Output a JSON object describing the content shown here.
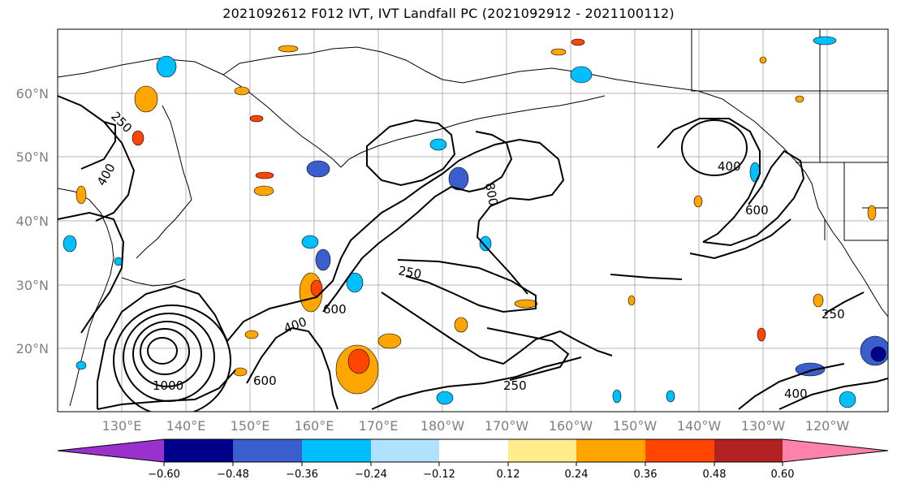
{
  "title": "2021092612 F012 IVT, IVT Landfall PC (2021092912 - 2021100112)",
  "lat_labels": [
    "60°N",
    "50°N",
    "40°N",
    "30°N",
    "20°N"
  ],
  "lon_labels": [
    "130°E",
    "140°E",
    "150°E",
    "160°E",
    "170°E",
    "180°W",
    "170°W",
    "160°W",
    "150°W",
    "140°W",
    "130°W",
    "120°W"
  ],
  "contour_labels": [
    "250",
    "400",
    "600",
    "800",
    "1000",
    "250",
    "400",
    "600",
    "250",
    "400",
    "600",
    "250",
    "400"
  ],
  "colorbar": {
    "tick_labels": [
      "−0.60",
      "−0.48",
      "−0.36",
      "−0.24",
      "−0.12",
      "0.12",
      "0.24",
      "0.36",
      "0.48",
      "0.60"
    ],
    "colors": [
      "#9932cc",
      "#00008b",
      "#3a5fcd",
      "#00bfff",
      "#b0e2ff",
      "#ffffff",
      "#ffec8b",
      "#ffa500",
      "#ff4500",
      "#b22222",
      "#ff82ab"
    ]
  }
}
